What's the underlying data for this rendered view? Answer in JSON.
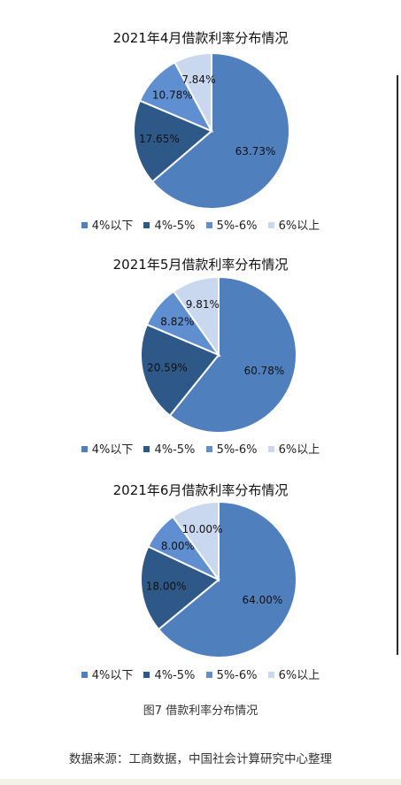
{
  "chart_data": [
    {
      "type": "pie",
      "title": "2021年4月借款利率分布情况",
      "categories": [
        "4%以下",
        "4%-5%",
        "5%-6%",
        "6%以上"
      ],
      "values": [
        63.73,
        17.65,
        10.78,
        7.84
      ],
      "labels": [
        "63.73%",
        "17.65%",
        "10.78%",
        "7.84%"
      ],
      "legend_position": "bottom"
    },
    {
      "type": "pie",
      "title": "2021年5月借款利率分布情况",
      "categories": [
        "4%以下",
        "4%-5%",
        "5%-6%",
        "6%以上"
      ],
      "values": [
        60.78,
        20.59,
        8.82,
        9.81
      ],
      "labels": [
        "60.78%",
        "20.59%",
        "8.82%",
        "9.81%"
      ],
      "legend_position": "bottom"
    },
    {
      "type": "pie",
      "title": "2021年6月借款利率分布情况",
      "categories": [
        "4%以下",
        "4%-5%",
        "5%-6%",
        "6%以上"
      ],
      "values": [
        64.0,
        18.0,
        8.0,
        10.0
      ],
      "labels": [
        "64.00%",
        "18.00%",
        "8.00%",
        "10.00%"
      ],
      "legend_position": "bottom"
    }
  ],
  "colors": [
    "#4f7fbd",
    "#2e5887",
    "#5f8fd0",
    "#c9d8ee"
  ],
  "caption": "图7 借款利率分布情况",
  "source": "数据来源：工商数据，中国社会计算研究中心整理"
}
